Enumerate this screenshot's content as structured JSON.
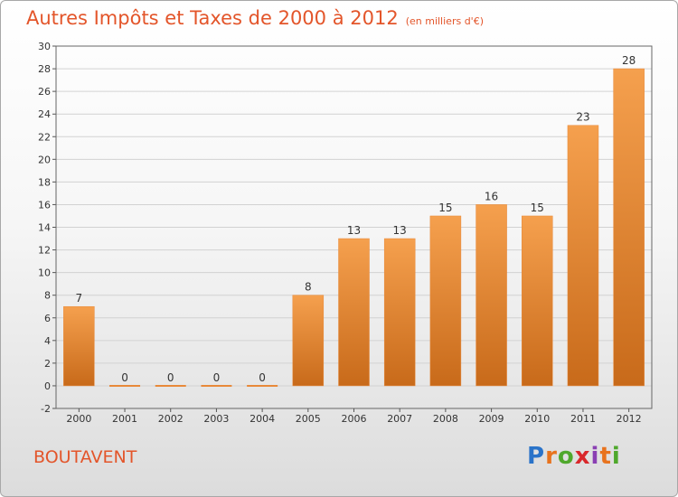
{
  "chart_data": {
    "type": "bar",
    "title": "Autres Impôts et Taxes de 2000 à 2012",
    "unit_note": "(en milliers d'€)",
    "categories": [
      "2000",
      "2001",
      "2002",
      "2003",
      "2004",
      "2005",
      "2006",
      "2007",
      "2008",
      "2009",
      "2010",
      "2011",
      "2012"
    ],
    "values": [
      7,
      0,
      0,
      0,
      0,
      8,
      13,
      13,
      15,
      16,
      15,
      23,
      28
    ],
    "ylim": [
      -2,
      30
    ],
    "yticks": [
      -2,
      0,
      2,
      4,
      6,
      8,
      10,
      12,
      14,
      16,
      18,
      20,
      22,
      24,
      26,
      28,
      30
    ],
    "grid": true,
    "bar_color": "#f5a04e",
    "bar_color_dark": "#c86a1a"
  },
  "footer": {
    "place": "BOUTAVENT",
    "logo_letters": [
      "P",
      "r",
      "o",
      "x",
      "i",
      "t",
      "i"
    ]
  },
  "colors": {
    "title": "#e3552a",
    "grid": "#d2d2d2"
  }
}
